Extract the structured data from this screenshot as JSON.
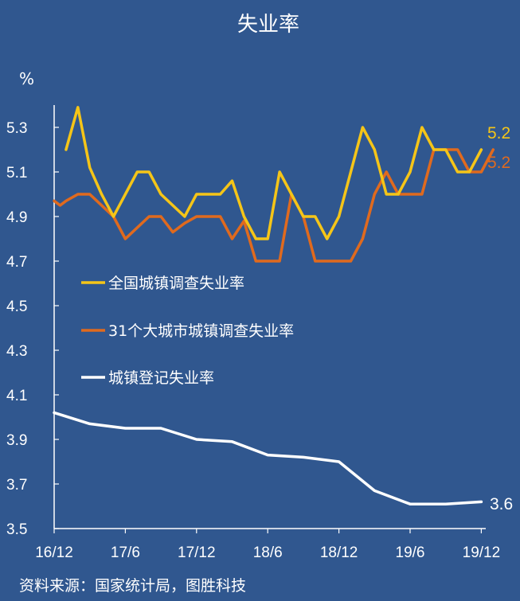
{
  "chart_data": {
    "type": "line",
    "title": "失业率",
    "unit_label": "%",
    "source": "资料来源：国家统计局，图胜科技",
    "ylim": [
      3.5,
      5.4
    ],
    "y_ticks": [
      "3.5",
      "3.7",
      "3.9",
      "4.1",
      "4.3",
      "4.5",
      "4.7",
      "4.9",
      "5.1",
      "5.3"
    ],
    "x_ticks": [
      "16/12",
      "17/6",
      "17/12",
      "18/6",
      "18/12",
      "19/6",
      "19/12"
    ],
    "legend_position": "center-left",
    "grid": false,
    "series": [
      {
        "name": "全国城镇调查失业率",
        "color": "#f5c518",
        "end_label": "5.2",
        "points": [
          [
            1,
            5.2
          ],
          [
            2,
            5.39
          ],
          [
            3,
            5.12
          ],
          [
            4,
            5.0
          ],
          [
            5,
            4.9
          ],
          [
            6,
            5.0
          ],
          [
            7,
            5.1
          ],
          [
            8,
            5.1
          ],
          [
            9,
            5.0
          ],
          [
            10,
            4.95
          ],
          [
            11,
            4.9
          ],
          [
            12,
            5.0
          ],
          [
            13,
            5.0
          ],
          [
            14,
            5.0
          ],
          [
            15,
            5.06
          ],
          [
            16,
            4.9
          ],
          [
            17,
            4.8
          ],
          [
            18,
            4.8
          ],
          [
            19,
            5.1
          ],
          [
            20,
            5.0
          ],
          [
            21,
            4.9
          ],
          [
            22,
            4.9
          ],
          [
            23,
            4.8
          ],
          [
            24,
            4.9
          ],
          [
            25,
            5.1
          ],
          [
            26,
            5.3
          ],
          [
            27,
            5.2
          ],
          [
            28,
            5.0
          ],
          [
            29,
            5.0
          ],
          [
            30,
            5.1
          ],
          [
            31,
            5.3
          ],
          [
            32,
            5.2
          ],
          [
            33,
            5.2
          ],
          [
            34,
            5.1
          ],
          [
            35,
            5.1
          ],
          [
            36,
            5.2
          ]
        ]
      },
      {
        "name": "31个大城市城镇调查失业率",
        "color": "#e06a1e",
        "end_label": "5.2",
        "points": [
          [
            0,
            4.97
          ],
          [
            0.5,
            4.95
          ],
          [
            1,
            4.97
          ],
          [
            2,
            5.0
          ],
          [
            3,
            5.0
          ],
          [
            4,
            4.95
          ],
          [
            5,
            4.9
          ],
          [
            6,
            4.8
          ],
          [
            7,
            4.85
          ],
          [
            8,
            4.9
          ],
          [
            9,
            4.9
          ],
          [
            10,
            4.83
          ],
          [
            11,
            4.87
          ],
          [
            12,
            4.9
          ],
          [
            13,
            4.9
          ],
          [
            14,
            4.9
          ],
          [
            15,
            4.8
          ],
          [
            16,
            4.88
          ],
          [
            17,
            4.7
          ],
          [
            18,
            4.7
          ],
          [
            19,
            4.7
          ],
          [
            20,
            5.0
          ],
          [
            21,
            4.9
          ],
          [
            22,
            4.7
          ],
          [
            23,
            4.7
          ],
          [
            24,
            4.7
          ],
          [
            25,
            4.7
          ],
          [
            26,
            4.8
          ],
          [
            27,
            5.0
          ],
          [
            28,
            5.1
          ],
          [
            29,
            5.0
          ],
          [
            30,
            5.0
          ],
          [
            31,
            5.0
          ],
          [
            32,
            5.2
          ],
          [
            33,
            5.2
          ],
          [
            34,
            5.2
          ],
          [
            35,
            5.1
          ],
          [
            36,
            5.1
          ],
          [
            37,
            5.2
          ]
        ]
      },
      {
        "name": "城镇登记失业率",
        "color": "#ffffff",
        "end_label": "3.6",
        "points": [
          [
            0,
            4.02
          ],
          [
            3,
            3.97
          ],
          [
            6,
            3.95
          ],
          [
            9,
            3.95
          ],
          [
            12,
            3.9
          ],
          [
            15,
            3.89
          ],
          [
            18,
            3.83
          ],
          [
            21,
            3.82
          ],
          [
            24,
            3.8
          ],
          [
            27,
            3.67
          ],
          [
            30,
            3.61
          ],
          [
            33,
            3.61
          ],
          [
            36,
            3.62
          ]
        ]
      }
    ]
  }
}
